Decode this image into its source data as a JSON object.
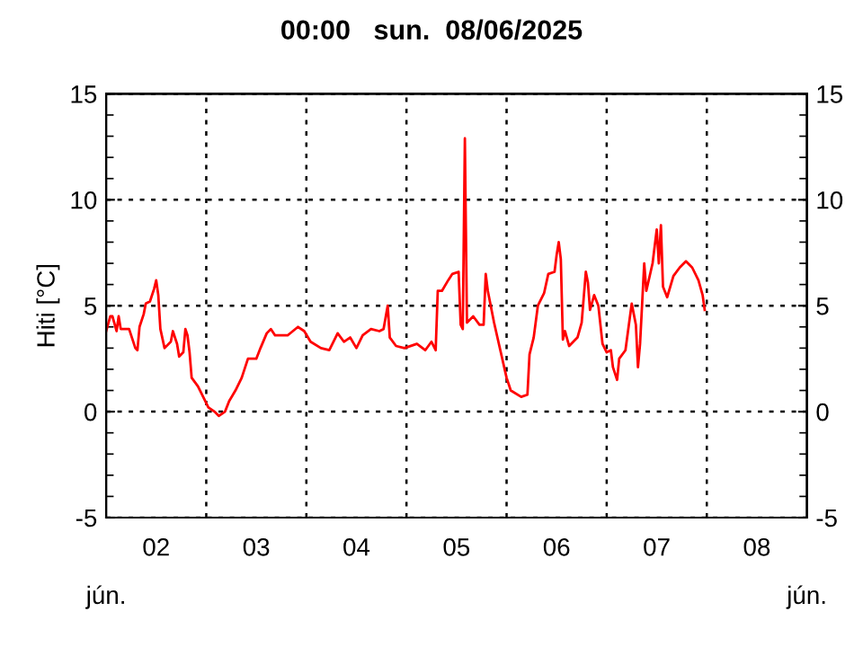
{
  "chart_data": {
    "type": "line",
    "title": "00:00   sun.  08/06/2025",
    "ylabel": "Hiti [°C]",
    "annotations": [
      "jún.",
      "jún."
    ],
    "xlim": [
      "2025-06-02T00:00",
      "2025-06-09T00:00"
    ],
    "xticks": [
      {
        "value": "2025-06-02T00:00",
        "label": null
      },
      {
        "value": "2025-06-02T12:00",
        "label": "02"
      },
      {
        "value": "2025-06-03T00:00",
        "label": null
      },
      {
        "value": "2025-06-03T12:00",
        "label": "03"
      },
      {
        "value": "2025-06-04T00:00",
        "label": null
      },
      {
        "value": "2025-06-04T12:00",
        "label": "04"
      },
      {
        "value": "2025-06-05T00:00",
        "label": null
      },
      {
        "value": "2025-06-05T12:00",
        "label": "05"
      },
      {
        "value": "2025-06-06T00:00",
        "label": null
      },
      {
        "value": "2025-06-06T12:00",
        "label": "06"
      },
      {
        "value": "2025-06-07T00:00",
        "label": null
      },
      {
        "value": "2025-06-07T12:00",
        "label": "07"
      },
      {
        "value": "2025-06-08T00:00",
        "label": null
      },
      {
        "value": "2025-06-08T12:00",
        "label": "08"
      },
      {
        "value": "2025-06-09T00:00",
        "label": null
      }
    ],
    "ylim": [
      -5,
      15
    ],
    "yticks": [
      -5,
      0,
      5,
      10,
      15
    ],
    "y2lim": [
      -5,
      15
    ],
    "y2ticks": [
      -5,
      0,
      5,
      10,
      15
    ],
    "grid": "y",
    "legend": false,
    "marker": "none",
    "line_style": "solid",
    "ref_lines": [
      {
        "axis": "x",
        "value": "2025-06-03T00:00",
        "color": "#000000",
        "line_style": "dotted"
      },
      {
        "axis": "x",
        "value": "2025-06-04T00:00",
        "color": "#000000",
        "line_style": "dotted"
      },
      {
        "axis": "x",
        "value": "2025-06-05T00:00",
        "color": "#000000",
        "line_style": "dotted"
      },
      {
        "axis": "x",
        "value": "2025-06-06T00:00",
        "color": "#000000",
        "line_style": "dotted"
      },
      {
        "axis": "x",
        "value": "2025-06-07T00:00",
        "color": "#000000",
        "line_style": "dotted"
      },
      {
        "axis": "x",
        "value": "2025-06-08T00:00",
        "color": "#000000",
        "line_style": "dotted"
      }
    ],
    "series": [
      {
        "color": "#ff0000",
        "x": [
          "2025-06-02T00:00",
          "2025-06-02T01:00",
          "2025-06-02T01:30",
          "2025-06-02T02:30",
          "2025-06-02T03:00",
          "2025-06-02T03:30",
          "2025-06-02T05:30",
          "2025-06-02T07:00",
          "2025-06-02T07:30",
          "2025-06-02T08:00",
          "2025-06-02T09:00",
          "2025-06-02T09:30",
          "2025-06-02T10:30",
          "2025-06-02T11:30",
          "2025-06-02T12:00",
          "2025-06-02T12:30",
          "2025-06-02T13:00",
          "2025-06-02T14:00",
          "2025-06-02T15:30",
          "2025-06-02T16:00",
          "2025-06-02T17:00",
          "2025-06-02T17:30",
          "2025-06-02T18:30",
          "2025-06-02T19:00",
          "2025-06-02T19:30",
          "2025-06-02T20:00",
          "2025-06-02T20:30",
          "2025-06-02T22:00",
          "2025-06-02T23:30",
          "2025-06-03T00:30",
          "2025-06-03T02:00",
          "2025-06-03T03:00",
          "2025-06-03T04:30",
          "2025-06-03T05:30",
          "2025-06-03T07:00",
          "2025-06-03T08:30",
          "2025-06-03T10:00",
          "2025-06-03T12:00",
          "2025-06-03T13:00",
          "2025-06-03T14:30",
          "2025-06-03T15:30",
          "2025-06-03T16:30",
          "2025-06-03T19:30",
          "2025-06-03T22:00",
          "2025-06-03T23:30",
          "2025-06-04T01:00",
          "2025-06-04T03:30",
          "2025-06-04T05:30",
          "2025-06-04T07:30",
          "2025-06-04T09:00",
          "2025-06-04T10:30",
          "2025-06-04T12:00",
          "2025-06-04T13:30",
          "2025-06-04T15:30",
          "2025-06-04T17:30",
          "2025-06-04T18:30",
          "2025-06-04T19:30",
          "2025-06-04T20:00",
          "2025-06-04T21:30",
          "2025-06-04T23:30",
          "2025-06-05T02:30",
          "2025-06-05T04:30",
          "2025-06-05T06:00",
          "2025-06-05T07:00",
          "2025-06-05T07:30",
          "2025-06-05T08:30",
          "2025-06-05T10:00",
          "2025-06-05T11:00",
          "2025-06-05T12:30",
          "2025-06-05T13:00",
          "2025-06-05T13:30",
          "2025-06-05T14:00",
          "2025-06-05T14:30",
          "2025-06-05T16:00",
          "2025-06-05T17:30",
          "2025-06-05T18:30",
          "2025-06-05T19:00",
          "2025-06-05T19:30",
          "2025-06-05T21:00",
          "2025-06-05T22:30",
          "2025-06-06T00:00",
          "2025-06-06T01:00",
          "2025-06-06T03:30",
          "2025-06-06T05:00",
          "2025-06-06T05:30",
          "2025-06-06T06:30",
          "2025-06-06T07:30",
          "2025-06-06T09:00",
          "2025-06-06T10:00",
          "2025-06-06T11:30",
          "2025-06-06T12:00",
          "2025-06-06T12:30",
          "2025-06-06T13:00",
          "2025-06-06T13:30",
          "2025-06-06T14:00",
          "2025-06-06T15:00",
          "2025-06-06T17:00",
          "2025-06-06T18:00",
          "2025-06-06T19:00",
          "2025-06-06T19:30",
          "2025-06-06T20:00",
          "2025-06-06T21:00",
          "2025-06-06T22:00",
          "2025-06-06T23:00",
          "2025-06-07T00:00",
          "2025-06-07T01:00",
          "2025-06-07T01:30",
          "2025-06-07T02:30",
          "2025-06-07T03:00",
          "2025-06-07T04:30",
          "2025-06-07T06:00",
          "2025-06-07T07:00",
          "2025-06-07T07:30",
          "2025-06-07T08:00",
          "2025-06-07T09:00",
          "2025-06-07T09:30",
          "2025-06-07T11:00",
          "2025-06-07T12:00",
          "2025-06-07T12:30",
          "2025-06-07T13:00",
          "2025-06-07T13:30",
          "2025-06-07T14:30",
          "2025-06-07T16:00",
          "2025-06-07T17:30",
          "2025-06-07T19:00",
          "2025-06-07T20:30",
          "2025-06-07T22:00",
          "2025-06-07T23:00",
          "2025-06-07T23:30"
        ],
        "values": [
          3.8,
          4.5,
          4.5,
          3.8,
          4.5,
          3.9,
          3.9,
          3.0,
          2.9,
          4.0,
          4.6,
          5.1,
          5.2,
          5.8,
          6.2,
          5.5,
          3.9,
          3.0,
          3.3,
          3.8,
          3.2,
          2.6,
          2.8,
          3.9,
          3.6,
          2.8,
          1.6,
          1.2,
          0.6,
          0.2,
          0.0,
          -0.2,
          0.0,
          0.5,
          1.0,
          1.6,
          2.5,
          2.5,
          3.0,
          3.7,
          3.9,
          3.6,
          3.6,
          4.0,
          3.8,
          3.3,
          3.0,
          2.9,
          3.7,
          3.3,
          3.5,
          3.0,
          3.6,
          3.9,
          3.8,
          3.9,
          5.0,
          3.5,
          3.1,
          3.0,
          3.2,
          2.9,
          3.3,
          2.9,
          5.7,
          5.7,
          6.2,
          6.5,
          6.6,
          4.1,
          3.9,
          12.9,
          4.2,
          4.5,
          4.1,
          4.1,
          6.5,
          5.7,
          4.2,
          2.9,
          1.6,
          1.0,
          0.7,
          0.8,
          2.7,
          3.5,
          5.0,
          5.6,
          6.5,
          6.6,
          7.4,
          8.0,
          7.2,
          3.4,
          3.8,
          3.1,
          3.5,
          4.2,
          6.6,
          6.1,
          4.8,
          5.5,
          5.0,
          3.2,
          2.8,
          2.9,
          2.1,
          1.5,
          2.5,
          2.9,
          5.1,
          4.1,
          2.1,
          3.2,
          7.0,
          5.7,
          7.0,
          8.6,
          7.0,
          8.8,
          5.9,
          5.4,
          6.4,
          6.8,
          7.1,
          6.8,
          6.2,
          5.5,
          4.8
        ]
      }
    ]
  }
}
